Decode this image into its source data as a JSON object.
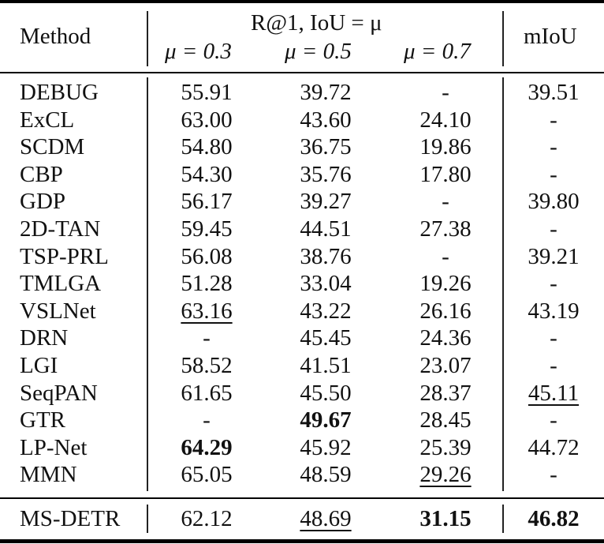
{
  "header": {
    "method": "Method",
    "group": "R@1, IoU = μ",
    "mu_columns": [
      "μ = 0.3",
      "μ = 0.5",
      "μ = 0.7"
    ],
    "miou": "mIoU"
  },
  "rows": [
    {
      "method": "DEBUG",
      "r03": "55.91",
      "r05": "39.72",
      "r07": "-",
      "miou": "39.51"
    },
    {
      "method": "ExCL",
      "r03": "63.00",
      "r05": "43.60",
      "r07": "24.10",
      "miou": "-"
    },
    {
      "method": "SCDM",
      "r03": "54.80",
      "r05": "36.75",
      "r07": "19.86",
      "miou": "-"
    },
    {
      "method": "CBP",
      "r03": "54.30",
      "r05": "35.76",
      "r07": "17.80",
      "miou": "-"
    },
    {
      "method": "GDP",
      "r03": "56.17",
      "r05": "39.27",
      "r07": "-",
      "miou": "39.80"
    },
    {
      "method": "2D-TAN",
      "r03": "59.45",
      "r05": "44.51",
      "r07": "27.38",
      "miou": "-"
    },
    {
      "method": "TSP-PRL",
      "r03": "56.08",
      "r05": "38.76",
      "r07": "-",
      "miou": "39.21"
    },
    {
      "method": "TMLGA",
      "r03": "51.28",
      "r05": "33.04",
      "r07": "19.26",
      "miou": "-"
    },
    {
      "method": "VSLNet",
      "r03": "63.16",
      "r05": "43.22",
      "r07": "26.16",
      "miou": "43.19"
    },
    {
      "method": "DRN",
      "r03": "-",
      "r05": "45.45",
      "r07": "24.36",
      "miou": "-"
    },
    {
      "method": "LGI",
      "r03": "58.52",
      "r05": "41.51",
      "r07": "23.07",
      "miou": "-"
    },
    {
      "method": "SeqPAN",
      "r03": "61.65",
      "r05": "45.50",
      "r07": "28.37",
      "miou": "45.11"
    },
    {
      "method": "GTR",
      "r03": "-",
      "r05": "49.67",
      "r07": "28.45",
      "miou": "-"
    },
    {
      "method": "LP-Net",
      "r03": "64.29",
      "r05": "45.92",
      "r07": "25.39",
      "miou": "44.72"
    },
    {
      "method": "MMN",
      "r03": "65.05",
      "r05": "48.59",
      "r07": "29.26",
      "miou": "-"
    }
  ],
  "ours": {
    "method": "MS-DETR",
    "r03": "62.12",
    "r05": "48.69",
    "r07": "31.15",
    "miou": "46.82"
  }
}
